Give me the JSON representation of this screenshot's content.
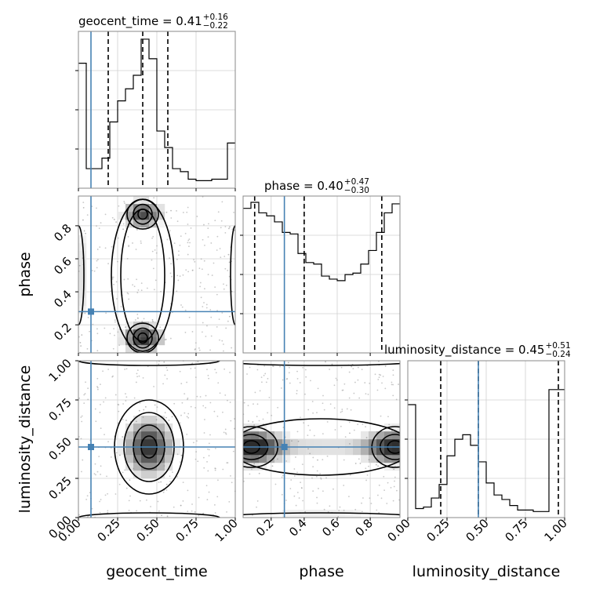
{
  "chart_data": {
    "type": "corner",
    "parameters": [
      "geocent_time",
      "phase",
      "luminosity_distance"
    ],
    "truths": [
      0.08,
      0.28,
      0.45
    ],
    "truth_color": "#4682b4",
    "hist_titles": [
      {
        "label": "geocent_time",
        "median": "0.41",
        "plus": "0.16",
        "minus": "0.22"
      },
      {
        "label": "phase",
        "median": "0.40",
        "plus": "0.47",
        "minus": "0.30"
      },
      {
        "label": "luminosity_distance",
        "median": "0.45",
        "plus": "0.51",
        "minus": "0.24"
      }
    ],
    "axis_ranges": {
      "geocent_time": [
        0,
        1
      ],
      "phase": [
        0.03,
        0.98
      ],
      "luminosity_distance": [
        0,
        1
      ]
    },
    "ticks": {
      "geocent_time": [
        "0.00",
        "0.25",
        "0.50",
        "0.75",
        "1.00"
      ],
      "phase": [
        "0.2",
        "0.4",
        "0.6",
        "0.8"
      ],
      "luminosity_distance": [
        "0.00",
        "0.25",
        "0.50",
        "0.75",
        "1.00"
      ]
    },
    "quantiles": {
      "geocent_time": [
        0.19,
        0.41,
        0.57
      ],
      "phase": [
        0.1,
        0.4,
        0.87
      ],
      "luminosity_distance": [
        0.21,
        0.45,
        0.96
      ]
    },
    "histograms": {
      "geocent_time": [
        0.83,
        0.13,
        0.13,
        0.2,
        0.44,
        0.58,
        0.66,
        0.75,
        0.99,
        0.86,
        0.38,
        0.27,
        0.13,
        0.11,
        0.06,
        0.05,
        0.05,
        0.06,
        0.06,
        0.3
      ],
      "phase": [
        0.96,
        1.0,
        0.93,
        0.91,
        0.87,
        0.8,
        0.79,
        0.66,
        0.6,
        0.59,
        0.51,
        0.49,
        0.48,
        0.52,
        0.53,
        0.59,
        0.68,
        0.8,
        0.93,
        0.99
      ],
      "luminosity_distance": [
        0.75,
        0.06,
        0.07,
        0.13,
        0.22,
        0.41,
        0.52,
        0.55,
        0.48,
        0.37,
        0.23,
        0.15,
        0.12,
        0.08,
        0.05,
        0.05,
        0.04,
        0.04,
        0.85,
        0.85
      ]
    },
    "grid": true,
    "contours": "black",
    "samples": "grey scatter"
  }
}
